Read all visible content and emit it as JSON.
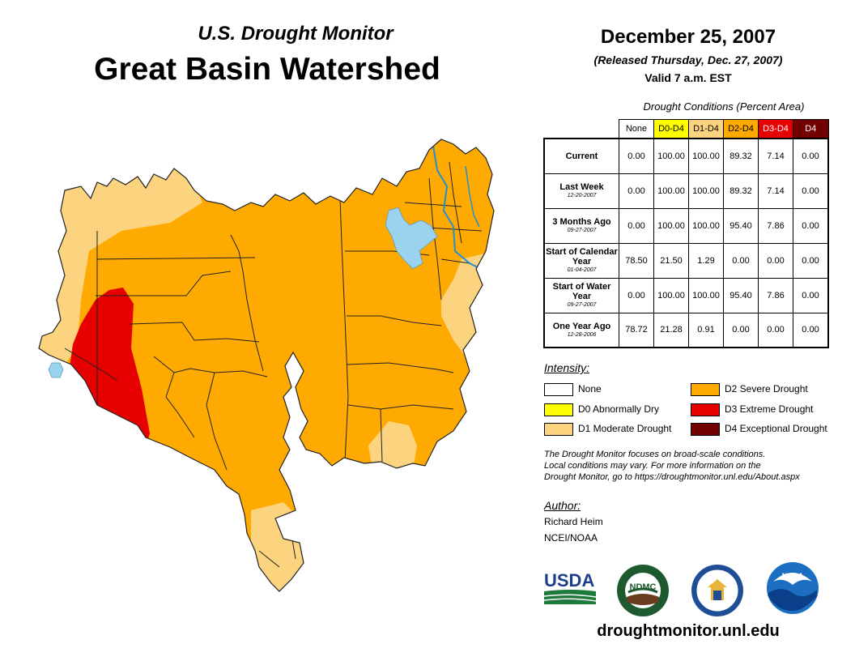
{
  "header": {
    "subtitle": "U.S. Drought Monitor",
    "title": "Great Basin Watershed",
    "date": "December 25, 2007",
    "released": "(Released Thursday, Dec. 27, 2007)",
    "valid": "Valid 7 a.m. EST"
  },
  "table": {
    "caption": "Drought Conditions (Percent Area)",
    "columns": [
      {
        "label": "None",
        "color": "#ffffff"
      },
      {
        "label": "D0-D4",
        "color": "#ffff00"
      },
      {
        "label": "D1-D4",
        "color": "#fcd37f"
      },
      {
        "label": "D2-D4",
        "color": "#ffaa00"
      },
      {
        "label": "D3-D4",
        "color": "#e60000"
      },
      {
        "label": "D4",
        "color": "#730000"
      }
    ],
    "rows": [
      {
        "label": "Current",
        "date": "",
        "values": [
          "0.00",
          "100.00",
          "100.00",
          "89.32",
          "7.14",
          "0.00"
        ]
      },
      {
        "label": "Last Week",
        "date": "12-20-2007",
        "values": [
          "0.00",
          "100.00",
          "100.00",
          "89.32",
          "7.14",
          "0.00"
        ]
      },
      {
        "label": "3 Months Ago",
        "date": "09-27-2007",
        "values": [
          "0.00",
          "100.00",
          "100.00",
          "95.40",
          "7.86",
          "0.00"
        ]
      },
      {
        "label": "Start of Calendar Year",
        "date": "01-04-2007",
        "values": [
          "78.50",
          "21.50",
          "1.29",
          "0.00",
          "0.00",
          "0.00"
        ]
      },
      {
        "label": "Start of Water Year",
        "date": "09-27-2007",
        "values": [
          "0.00",
          "100.00",
          "100.00",
          "95.40",
          "7.86",
          "0.00"
        ]
      },
      {
        "label": "One Year Ago",
        "date": "12-28-2006",
        "values": [
          "78.72",
          "21.28",
          "0.91",
          "0.00",
          "0.00",
          "0.00"
        ]
      }
    ]
  },
  "legend": {
    "title": "Intensity:",
    "items": [
      {
        "label": "None",
        "color": "#ffffff"
      },
      {
        "label": "D0 Abnormally Dry",
        "color": "#ffff00"
      },
      {
        "label": "D1 Moderate Drought",
        "color": "#fcd37f"
      },
      {
        "label": "D2 Severe Drought",
        "color": "#ffaa00"
      },
      {
        "label": "D3 Extreme Drought",
        "color": "#e60000"
      },
      {
        "label": "D4 Exceptional Drought",
        "color": "#730000"
      }
    ]
  },
  "note": {
    "line1": "The Drought Monitor focuses on broad-scale conditions.",
    "line2": "Local conditions may vary. For more information on the",
    "line3": "Drought Monitor, go to https://droughtmonitor.unl.edu/About.aspx"
  },
  "author": {
    "title": "Author:",
    "name": "Richard Heim",
    "org": "NCEI/NOAA"
  },
  "logos": {
    "usda": "USDA",
    "ndmc": "NDMC",
    "noaa": "NOAA"
  },
  "website": "droughtmonitor.unl.edu",
  "map_colors": {
    "d1": "#fcd37f",
    "d2": "#ffaa00",
    "d3": "#e60000",
    "water": "#9bd3ee",
    "river": "#1f8fd6"
  }
}
